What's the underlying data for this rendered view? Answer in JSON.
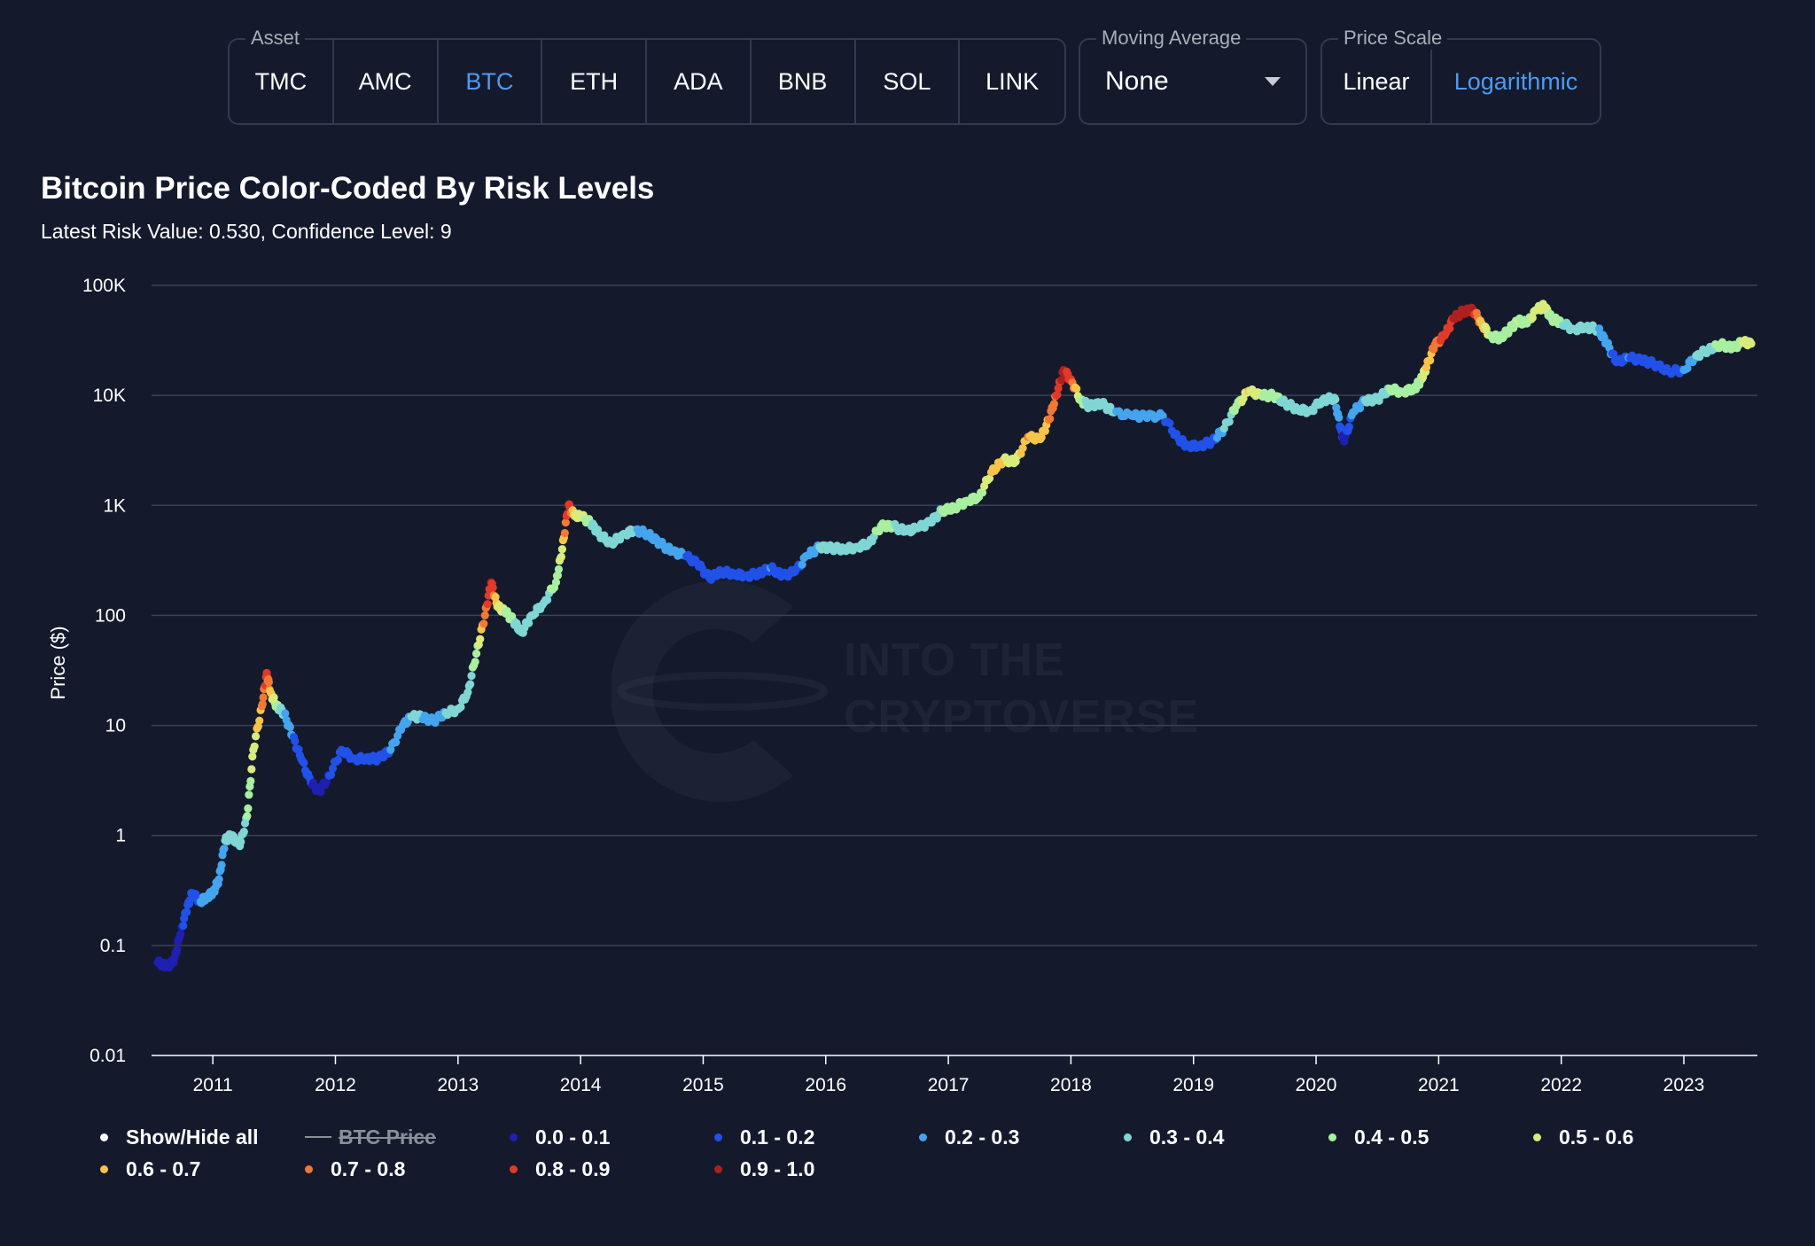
{
  "asset_group": {
    "label": "Asset",
    "items": [
      "TMC",
      "AMC",
      "BTC",
      "ETH",
      "ADA",
      "BNB",
      "SOL",
      "LINK"
    ],
    "selected": "BTC"
  },
  "moving_average": {
    "label": "Moving Average",
    "value": "None"
  },
  "price_scale": {
    "label": "Price Scale",
    "options": [
      "Linear",
      "Logarithmic"
    ],
    "selected": "Logarithmic"
  },
  "watermark": {
    "line1": "INTO THE",
    "line2": "CRYPTOVERSE"
  },
  "colors": {
    "background": "#141a2c",
    "accent": "#4e9af1",
    "risk": [
      "#1f1fb0",
      "#2151e8",
      "#44a4ee",
      "#7fd6d4",
      "#a8f0a0",
      "#d8ec7c",
      "#f6c44a",
      "#f27836",
      "#e2392a",
      "#b01f1f"
    ]
  },
  "chart_data": {
    "type": "scatter",
    "title": "Bitcoin Price Color-Coded By Risk Levels",
    "subtitle": "Latest Risk Value: 0.530, Confidence Level: 9",
    "ylabel": "Price ($)",
    "xlabel": "",
    "y_scale": "log",
    "ylim": [
      0.01,
      100000
    ],
    "xlim": [
      2010.5,
      2023.6
    ],
    "y_ticks": [
      0.01,
      0.1,
      1,
      10,
      100,
      1000,
      10000,
      100000
    ],
    "y_tick_labels": [
      "0.01",
      "0.1",
      "1",
      "10",
      "100",
      "1K",
      "10K",
      "100K"
    ],
    "x_ticks": [
      2011,
      2012,
      2013,
      2014,
      2015,
      2016,
      2017,
      2018,
      2019,
      2020,
      2021,
      2022,
      2023
    ],
    "x_tick_labels": [
      "2011",
      "2012",
      "2013",
      "2014",
      "2015",
      "2016",
      "2017",
      "2018",
      "2019",
      "2020",
      "2021",
      "2022",
      "2023"
    ],
    "grid": "horizontal",
    "legend_position": "bottom",
    "legend": {
      "show_hide_label": "Show/Hide all",
      "price_label": "BTC Price",
      "bins": [
        "0.0 - 0.1",
        "0.1 - 0.2",
        "0.2 - 0.3",
        "0.3 - 0.4",
        "0.4 - 0.5",
        "0.5 - 0.6",
        "0.6 - 0.7",
        "0.7 - 0.8",
        "0.8 - 0.9",
        "0.9 - 1.0"
      ]
    },
    "latest_risk": 0.53,
    "points": [
      [
        2010.55,
        0.07,
        0.05
      ],
      [
        2010.62,
        0.065,
        0.05
      ],
      [
        2010.68,
        0.07,
        0.05
      ],
      [
        2010.73,
        0.12,
        0.05
      ],
      [
        2010.78,
        0.2,
        0.15
      ],
      [
        2010.83,
        0.3,
        0.15
      ],
      [
        2010.9,
        0.25,
        0.2
      ],
      [
        2010.95,
        0.28,
        0.2
      ],
      [
        2011.0,
        0.3,
        0.2
      ],
      [
        2011.05,
        0.4,
        0.25
      ],
      [
        2011.1,
        0.9,
        0.3
      ],
      [
        2011.15,
        1.0,
        0.3
      ],
      [
        2011.22,
        0.8,
        0.3
      ],
      [
        2011.28,
        1.5,
        0.4
      ],
      [
        2011.33,
        6,
        0.55
      ],
      [
        2011.4,
        15,
        0.7
      ],
      [
        2011.44,
        30,
        0.85
      ],
      [
        2011.47,
        20,
        0.65
      ],
      [
        2011.52,
        15,
        0.45
      ],
      [
        2011.58,
        13,
        0.3
      ],
      [
        2011.65,
        8,
        0.2
      ],
      [
        2011.72,
        5,
        0.15
      ],
      [
        2011.8,
        3,
        0.1
      ],
      [
        2011.87,
        2.5,
        0.05
      ],
      [
        2011.95,
        3.5,
        0.1
      ],
      [
        2012.05,
        6,
        0.15
      ],
      [
        2012.15,
        5,
        0.15
      ],
      [
        2012.25,
        5,
        0.15
      ],
      [
        2012.35,
        5,
        0.15
      ],
      [
        2012.45,
        6,
        0.2
      ],
      [
        2012.55,
        10,
        0.25
      ],
      [
        2012.62,
        12,
        0.3
      ],
      [
        2012.7,
        12,
        0.3
      ],
      [
        2012.8,
        11,
        0.25
      ],
      [
        2012.9,
        13,
        0.3
      ],
      [
        2013.0,
        14,
        0.3
      ],
      [
        2013.08,
        20,
        0.35
      ],
      [
        2013.15,
        45,
        0.45
      ],
      [
        2013.22,
        100,
        0.75
      ],
      [
        2013.27,
        200,
        0.9
      ],
      [
        2013.32,
        120,
        0.6
      ],
      [
        2013.38,
        110,
        0.5
      ],
      [
        2013.45,
        90,
        0.4
      ],
      [
        2013.52,
        70,
        0.35
      ],
      [
        2013.6,
        100,
        0.35
      ],
      [
        2013.7,
        130,
        0.35
      ],
      [
        2013.8,
        200,
        0.45
      ],
      [
        2013.85,
        400,
        0.55
      ],
      [
        2013.9,
        1000,
        0.9
      ],
      [
        2013.95,
        800,
        0.6
      ],
      [
        2014.0,
        800,
        0.55
      ],
      [
        2014.08,
        700,
        0.4
      ],
      [
        2014.15,
        550,
        0.35
      ],
      [
        2014.25,
        450,
        0.3
      ],
      [
        2014.35,
        550,
        0.3
      ],
      [
        2014.45,
        600,
        0.3
      ],
      [
        2014.55,
        550,
        0.25
      ],
      [
        2014.65,
        450,
        0.2
      ],
      [
        2014.75,
        380,
        0.2
      ],
      [
        2014.85,
        350,
        0.2
      ],
      [
        2014.95,
        300,
        0.15
      ],
      [
        2015.05,
        220,
        0.1
      ],
      [
        2015.15,
        250,
        0.1
      ],
      [
        2015.25,
        240,
        0.1
      ],
      [
        2015.35,
        230,
        0.1
      ],
      [
        2015.45,
        240,
        0.15
      ],
      [
        2015.55,
        270,
        0.2
      ],
      [
        2015.65,
        230,
        0.15
      ],
      [
        2015.75,
        250,
        0.15
      ],
      [
        2015.85,
        350,
        0.25
      ],
      [
        2015.95,
        420,
        0.3
      ],
      [
        2016.05,
        410,
        0.3
      ],
      [
        2016.15,
        400,
        0.3
      ],
      [
        2016.25,
        420,
        0.3
      ],
      [
        2016.35,
        450,
        0.35
      ],
      [
        2016.45,
        650,
        0.45
      ],
      [
        2016.55,
        650,
        0.4
      ],
      [
        2016.65,
        580,
        0.35
      ],
      [
        2016.75,
        620,
        0.35
      ],
      [
        2016.85,
        700,
        0.35
      ],
      [
        2016.95,
        900,
        0.4
      ],
      [
        2017.05,
        950,
        0.4
      ],
      [
        2017.15,
        1100,
        0.45
      ],
      [
        2017.25,
        1200,
        0.45
      ],
      [
        2017.35,
        2000,
        0.6
      ],
      [
        2017.45,
        2600,
        0.6
      ],
      [
        2017.55,
        2500,
        0.55
      ],
      [
        2017.65,
        4200,
        0.7
      ],
      [
        2017.75,
        4000,
        0.65
      ],
      [
        2017.82,
        6000,
        0.7
      ],
      [
        2017.88,
        10000,
        0.8
      ],
      [
        2017.94,
        17000,
        0.95
      ],
      [
        2018.0,
        14000,
        0.8
      ],
      [
        2018.08,
        9000,
        0.45
      ],
      [
        2018.15,
        8000,
        0.35
      ],
      [
        2018.25,
        8500,
        0.35
      ],
      [
        2018.35,
        7000,
        0.3
      ],
      [
        2018.5,
        6500,
        0.25
      ],
      [
        2018.6,
        6500,
        0.25
      ],
      [
        2018.75,
        6500,
        0.2
      ],
      [
        2018.88,
        4000,
        0.15
      ],
      [
        2018.95,
        3500,
        0.1
      ],
      [
        2019.05,
        3500,
        0.1
      ],
      [
        2019.15,
        3800,
        0.15
      ],
      [
        2019.25,
        5000,
        0.3
      ],
      [
        2019.35,
        8000,
        0.45
      ],
      [
        2019.45,
        11000,
        0.6
      ],
      [
        2019.55,
        10000,
        0.5
      ],
      [
        2019.65,
        10000,
        0.45
      ],
      [
        2019.75,
        8500,
        0.35
      ],
      [
        2019.85,
        7500,
        0.35
      ],
      [
        2019.95,
        7200,
        0.3
      ],
      [
        2020.05,
        9000,
        0.35
      ],
      [
        2020.15,
        9500,
        0.35
      ],
      [
        2020.2,
        5000,
        0.15
      ],
      [
        2020.23,
        3800,
        0.05
      ],
      [
        2020.3,
        7000,
        0.25
      ],
      [
        2020.4,
        9000,
        0.3
      ],
      [
        2020.5,
        9200,
        0.3
      ],
      [
        2020.6,
        11500,
        0.4
      ],
      [
        2020.7,
        10800,
        0.4
      ],
      [
        2020.8,
        11500,
        0.4
      ],
      [
        2020.85,
        13500,
        0.45
      ],
      [
        2020.9,
        18000,
        0.6
      ],
      [
        2020.97,
        29000,
        0.75
      ],
      [
        2021.05,
        35000,
        0.85
      ],
      [
        2021.12,
        50000,
        0.9
      ],
      [
        2021.2,
        58000,
        0.9
      ],
      [
        2021.28,
        60000,
        0.9
      ],
      [
        2021.35,
        45000,
        0.65
      ],
      [
        2021.42,
        35000,
        0.5
      ],
      [
        2021.5,
        33000,
        0.45
      ],
      [
        2021.58,
        40000,
        0.45
      ],
      [
        2021.65,
        48000,
        0.5
      ],
      [
        2021.72,
        45000,
        0.45
      ],
      [
        2021.8,
        60000,
        0.55
      ],
      [
        2021.86,
        65000,
        0.55
      ],
      [
        2021.92,
        50000,
        0.45
      ],
      [
        2022.0,
        46000,
        0.4
      ],
      [
        2022.1,
        40000,
        0.35
      ],
      [
        2022.2,
        42000,
        0.3
      ],
      [
        2022.3,
        40000,
        0.3
      ],
      [
        2022.37,
        30000,
        0.25
      ],
      [
        2022.45,
        20000,
        0.15
      ],
      [
        2022.55,
        22000,
        0.2
      ],
      [
        2022.65,
        21000,
        0.15
      ],
      [
        2022.75,
        19500,
        0.15
      ],
      [
        2022.88,
        16500,
        0.15
      ],
      [
        2023.0,
        17000,
        0.2
      ],
      [
        2023.1,
        23000,
        0.3
      ],
      [
        2023.2,
        26000,
        0.35
      ],
      [
        2023.3,
        29000,
        0.45
      ],
      [
        2023.4,
        27000,
        0.45
      ],
      [
        2023.48,
        30500,
        0.5
      ],
      [
        2023.55,
        29500,
        0.53
      ]
    ]
  }
}
